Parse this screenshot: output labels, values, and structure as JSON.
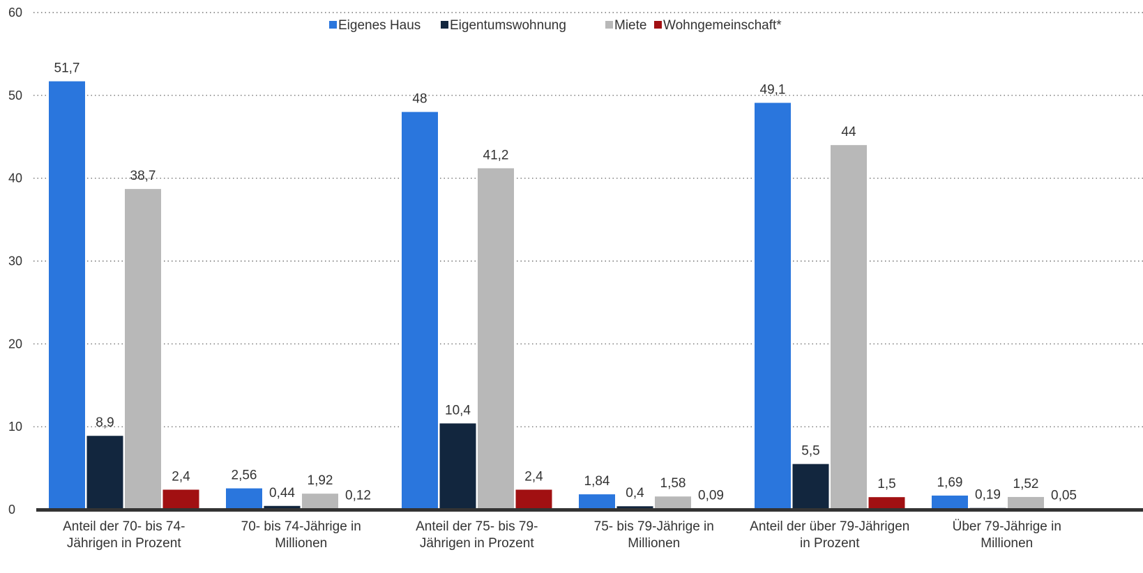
{
  "chart_data": {
    "type": "bar",
    "categories": [
      [
        "Anteil der 70- bis 74-",
        "Jährigen in Prozent"
      ],
      [
        "70- bis 74-Jährige in",
        "Millionen"
      ],
      [
        "Anteil der 75- bis 79-",
        "Jährigen in Prozent"
      ],
      [
        "75- bis 79-Jährige in",
        "Millionen"
      ],
      [
        "Anteil der über 79-Jährigen",
        "in Prozent"
      ],
      [
        "Über 79-Jährige in",
        "Millionen"
      ]
    ],
    "series": [
      {
        "name": "Eigenes Haus",
        "color": "#2a76dd",
        "values": [
          51.7,
          2.56,
          48,
          1.84,
          49.1,
          1.69
        ],
        "labels": [
          "51,7",
          "2,56",
          "48",
          "1,84",
          "49,1",
          "1,69"
        ]
      },
      {
        "name": "Eigentumswohnung",
        "color": "#12263e",
        "values": [
          8.9,
          0.44,
          10.4,
          0.4,
          5.5,
          0.19
        ],
        "labels": [
          "8,9",
          "0,44",
          "10,4",
          "0,4",
          "5,5",
          "0,19"
        ]
      },
      {
        "name": "Miete",
        "color": "#b8b8b8",
        "values": [
          38.7,
          1.92,
          41.2,
          1.58,
          44,
          1.52
        ],
        "labels": [
          "38,7",
          "1,92",
          "41,2",
          "1,58",
          "44",
          "1,52"
        ]
      },
      {
        "name": "Wohngemeinschaft*",
        "color": "#a11012",
        "values": [
          2.4,
          0.12,
          2.4,
          0.09,
          1.5,
          0.05
        ],
        "labels": [
          "2,4",
          "0,12",
          "2,4",
          "0,09",
          "1,5",
          "0,05"
        ]
      }
    ],
    "ylim": [
      0,
      60
    ],
    "yticks": [
      0,
      10,
      20,
      30,
      40,
      50,
      60
    ],
    "grid": true,
    "legend_position": "top-center",
    "title": "",
    "xlabel": "",
    "ylabel": ""
  }
}
